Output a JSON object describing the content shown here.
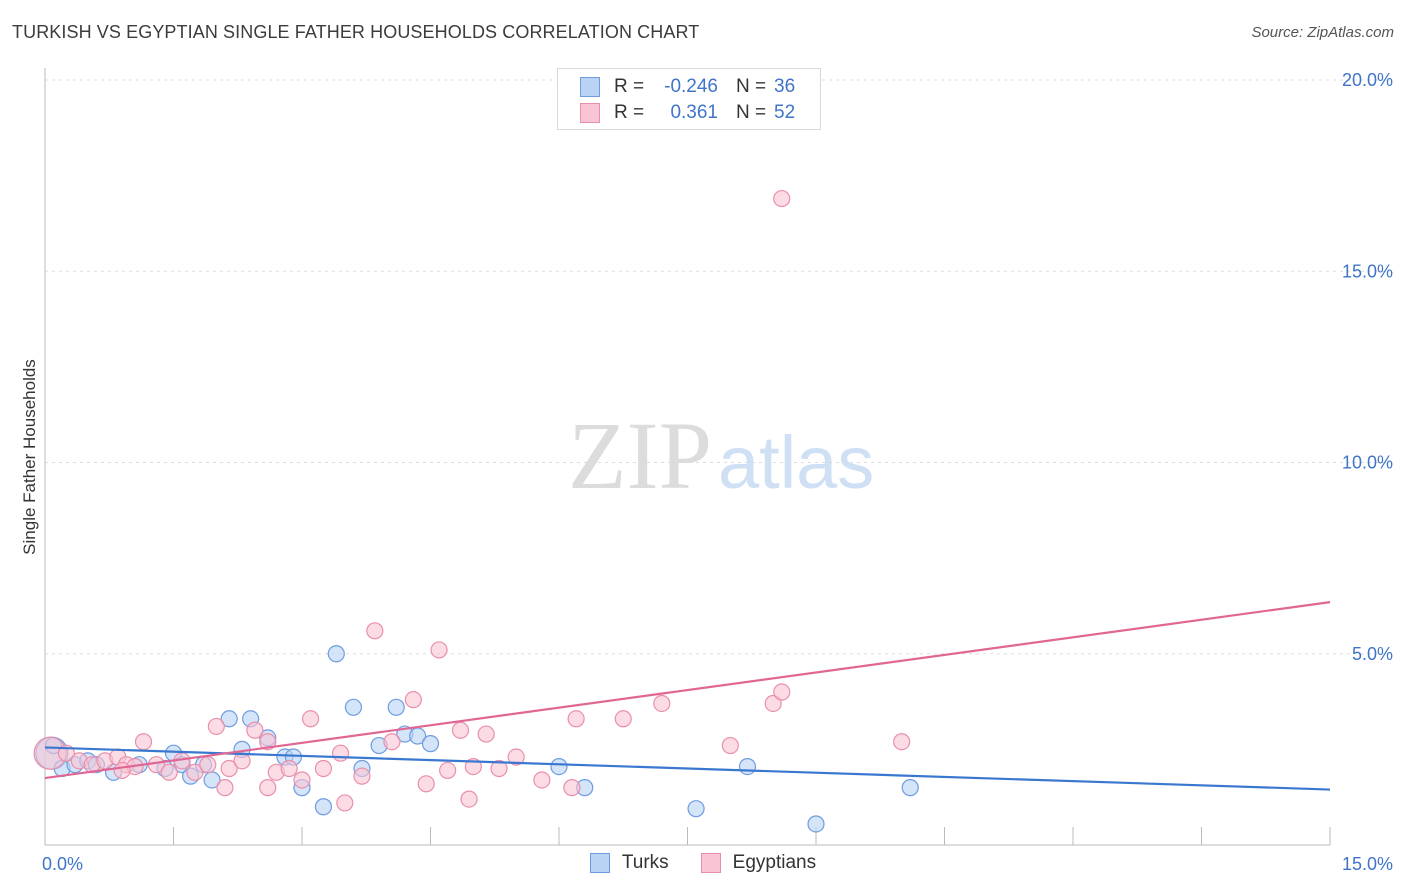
{
  "title": "TURKISH VS EGYPTIAN SINGLE FATHER HOUSEHOLDS CORRELATION CHART",
  "source": "Source: ZipAtlas.com",
  "watermark": {
    "zip": "ZIP",
    "atlas": "atlas"
  },
  "legend": {
    "rows": [
      {
        "r_label": "R =",
        "r_value": "-0.246",
        "n_label": "N =",
        "n_value": "36",
        "fill": "#b9d3f5",
        "stroke": "#6f9be0"
      },
      {
        "r_label": "R =",
        "r_value": "0.361",
        "n_label": "N =",
        "n_value": "52",
        "fill": "#f9c5d4",
        "stroke": "#ea8fab"
      }
    ],
    "bottom": [
      {
        "name": "Turks",
        "fill": "#b9d3f5",
        "stroke": "#6f9be0"
      },
      {
        "name": "Egyptians",
        "fill": "#f9c5d4",
        "stroke": "#ea8fab"
      }
    ]
  },
  "chart_data": {
    "type": "scatter",
    "xlabel": "",
    "ylabel": "Single Father Households",
    "xlim": [
      0,
      15
    ],
    "ylim": [
      0,
      20
    ],
    "x_tick_labels": [
      "0.0%",
      "15.0%"
    ],
    "y_tick_values": [
      5,
      10,
      15,
      20
    ],
    "y_tick_labels": [
      "5.0%",
      "10.0%",
      "15.0%",
      "20.0%"
    ],
    "grid": "horizontal dashed",
    "legend_placement": "top-center",
    "series": [
      {
        "name": "Turks",
        "color": "#6f9be0",
        "fill": "#b9d3f5",
        "trend": {
          "x": [
            0,
            15
          ],
          "y": [
            2.55,
            1.45
          ],
          "color": "#3a78d0"
        },
        "points": [
          {
            "x": 0.08,
            "y": 2.4,
            "big": true
          },
          {
            "x": 0.2,
            "y": 2.0
          },
          {
            "x": 0.35,
            "y": 2.1
          },
          {
            "x": 0.5,
            "y": 2.2
          },
          {
            "x": 0.6,
            "y": 2.1
          },
          {
            "x": 0.8,
            "y": 1.9
          },
          {
            "x": 1.1,
            "y": 2.1
          },
          {
            "x": 1.4,
            "y": 2.0
          },
          {
            "x": 1.5,
            "y": 2.4
          },
          {
            "x": 1.6,
            "y": 2.1
          },
          {
            "x": 1.7,
            "y": 1.8
          },
          {
            "x": 1.85,
            "y": 2.1
          },
          {
            "x": 1.95,
            "y": 1.7
          },
          {
            "x": 2.15,
            "y": 3.3
          },
          {
            "x": 2.3,
            "y": 2.5
          },
          {
            "x": 2.4,
            "y": 3.3
          },
          {
            "x": 2.6,
            "y": 2.8
          },
          {
            "x": 2.8,
            "y": 2.3
          },
          {
            "x": 2.9,
            "y": 2.3
          },
          {
            "x": 3.0,
            "y": 1.5
          },
          {
            "x": 3.25,
            "y": 1.0
          },
          {
            "x": 3.4,
            "y": 5.0
          },
          {
            "x": 3.6,
            "y": 3.6
          },
          {
            "x": 3.7,
            "y": 2.0
          },
          {
            "x": 3.9,
            "y": 2.6
          },
          {
            "x": 4.1,
            "y": 3.6
          },
          {
            "x": 4.2,
            "y": 2.9
          },
          {
            "x": 4.35,
            "y": 2.85
          },
          {
            "x": 4.5,
            "y": 2.65
          },
          {
            "x": 6.0,
            "y": 2.05
          },
          {
            "x": 6.3,
            "y": 1.5
          },
          {
            "x": 7.6,
            "y": 0.95
          },
          {
            "x": 8.2,
            "y": 2.05
          },
          {
            "x": 9.0,
            "y": 0.55
          },
          {
            "x": 10.1,
            "y": 1.5
          },
          {
            "x": 0.1,
            "y": 2.6
          }
        ]
      },
      {
        "name": "Egyptians",
        "color": "#ea8fab",
        "fill": "#f9c5d4",
        "trend": {
          "x": [
            0,
            15
          ],
          "y": [
            1.75,
            6.35
          ],
          "color": "#e06693"
        },
        "points": [
          {
            "x": 0.06,
            "y": 2.4,
            "big": true
          },
          {
            "x": 0.25,
            "y": 2.4
          },
          {
            "x": 0.4,
            "y": 2.2
          },
          {
            "x": 0.55,
            "y": 2.1
          },
          {
            "x": 0.7,
            "y": 2.2
          },
          {
            "x": 0.85,
            "y": 2.3
          },
          {
            "x": 0.95,
            "y": 2.1
          },
          {
            "x": 1.05,
            "y": 2.05
          },
          {
            "x": 1.15,
            "y": 2.7
          },
          {
            "x": 1.3,
            "y": 2.1
          },
          {
            "x": 1.45,
            "y": 1.9
          },
          {
            "x": 1.6,
            "y": 2.2
          },
          {
            "x": 1.75,
            "y": 1.9
          },
          {
            "x": 1.9,
            "y": 2.1
          },
          {
            "x": 2.0,
            "y": 3.1
          },
          {
            "x": 2.15,
            "y": 2.0
          },
          {
            "x": 2.3,
            "y": 2.2
          },
          {
            "x": 2.45,
            "y": 3.0
          },
          {
            "x": 2.6,
            "y": 2.7
          },
          {
            "x": 2.6,
            "y": 1.5
          },
          {
            "x": 2.7,
            "y": 1.9
          },
          {
            "x": 2.85,
            "y": 2.0
          },
          {
            "x": 3.0,
            "y": 1.7
          },
          {
            "x": 3.1,
            "y": 3.3
          },
          {
            "x": 3.25,
            "y": 2.0
          },
          {
            "x": 3.45,
            "y": 2.4
          },
          {
            "x": 3.7,
            "y": 1.8
          },
          {
            "x": 3.85,
            "y": 5.6
          },
          {
            "x": 4.05,
            "y": 2.7
          },
          {
            "x": 4.3,
            "y": 3.8
          },
          {
            "x": 4.45,
            "y": 1.6
          },
          {
            "x": 4.6,
            "y": 5.1
          },
          {
            "x": 4.7,
            "y": 1.95
          },
          {
            "x": 4.85,
            "y": 3.0
          },
          {
            "x": 4.95,
            "y": 1.2
          },
          {
            "x": 5.0,
            "y": 2.05
          },
          {
            "x": 5.15,
            "y": 2.9
          },
          {
            "x": 5.5,
            "y": 2.3
          },
          {
            "x": 5.8,
            "y": 1.7
          },
          {
            "x": 6.15,
            "y": 1.5
          },
          {
            "x": 6.2,
            "y": 3.3
          },
          {
            "x": 6.75,
            "y": 3.3
          },
          {
            "x": 7.2,
            "y": 3.7
          },
          {
            "x": 8.0,
            "y": 2.6
          },
          {
            "x": 8.5,
            "y": 3.7
          },
          {
            "x": 8.6,
            "y": 4.0
          },
          {
            "x": 8.6,
            "y": 16.9
          },
          {
            "x": 10.0,
            "y": 2.7
          },
          {
            "x": 3.5,
            "y": 1.1
          },
          {
            "x": 2.1,
            "y": 1.5
          },
          {
            "x": 0.9,
            "y": 1.95
          },
          {
            "x": 5.3,
            "y": 2.0
          }
        ]
      }
    ]
  }
}
